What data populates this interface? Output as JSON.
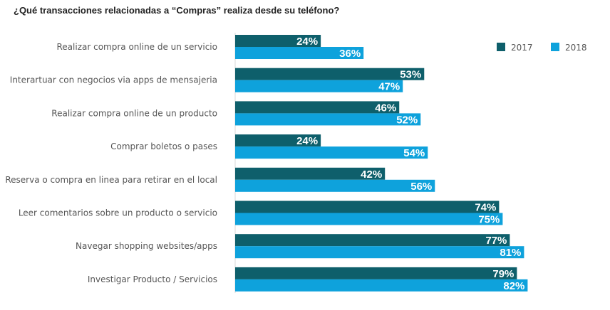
{
  "chart_data": {
    "type": "bar",
    "orientation": "horizontal",
    "title": "¿Qué transacciones relacionadas a “Compras” realiza desde su teléfono?",
    "categories": [
      "Realizar compra online de un servicio",
      "Interartuar con negocios via apps de mensajeria",
      "Realizar compra online de un producto",
      "Comprar boletos o pases",
      "Reserva o compra en linea para retirar en el local",
      "Leer comentarios sobre un producto o servicio",
      "Navegar shopping websites/apps",
      "Investigar Producto / Servicios"
    ],
    "series": [
      {
        "name": "2017",
        "color": "#0e5f6b",
        "values": [
          24,
          53,
          46,
          24,
          42,
          74,
          77,
          79
        ]
      },
      {
        "name": "2018",
        "color": "#0ea2dc",
        "values": [
          36,
          47,
          52,
          54,
          56,
          75,
          81,
          82
        ]
      }
    ],
    "value_suffix": "%",
    "xlim": [
      0,
      100
    ],
    "grid": false,
    "legend_position": "top-right"
  }
}
